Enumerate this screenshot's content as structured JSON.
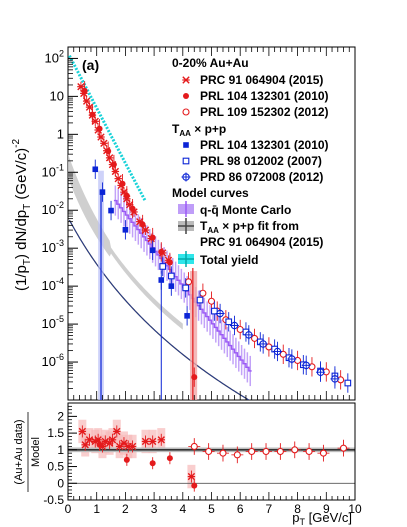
{
  "chart_data": [
    {
      "type": "scatter",
      "panel_label": "(a)",
      "ylabel_main": "(1/p",
      "ylabel_sub": "T",
      "ylabel_rest": ") dN/dp",
      "ylabel_sub2": "T",
      "ylabel_unit": " (GeV/c)",
      "ylabel_exp": "-2",
      "y_scale": "log",
      "xlim": [
        0,
        10
      ],
      "ylim": [
        1e-07,
        200
      ],
      "y_ticks": [
        {
          "v": 100,
          "m": "10",
          "e": "2"
        },
        {
          "v": 10,
          "m": "10",
          "e": ""
        },
        {
          "v": 1,
          "m": "1",
          "e": ""
        },
        {
          "v": 0.1,
          "m": "10",
          "e": "-1"
        },
        {
          "v": 0.01,
          "m": "10",
          "e": "-2"
        },
        {
          "v": 0.001,
          "m": "10",
          "e": "-3"
        },
        {
          "v": 0.0001,
          "m": "10",
          "e": "-4"
        },
        {
          "v": 1e-05,
          "m": "10",
          "e": "-5"
        },
        {
          "v": 1e-06,
          "m": "10",
          "e": "-6"
        }
      ],
      "legend_header": "0-20% Au+Au",
      "legend_taa_prefix": "T",
      "legend_taa_sub": "AA",
      "legend_taa_rest": " × p+p",
      "legend_model_header": "Model curves",
      "series": [
        {
          "name": "PRC 91 064904 (2015)",
          "color": "#e41a1c",
          "marker": "star",
          "points": [
            [
              0.45,
              18
            ],
            [
              0.55,
              12
            ],
            [
              0.65,
              7.5
            ],
            [
              0.75,
              5.2
            ],
            [
              0.85,
              3.2
            ],
            [
              0.95,
              2.2
            ],
            [
              1.05,
              1.3
            ],
            [
              1.15,
              0.85
            ],
            [
              1.25,
              0.58
            ],
            [
              1.35,
              0.37
            ],
            [
              1.45,
              0.24
            ],
            [
              1.55,
              0.16
            ],
            [
              1.65,
              0.105
            ],
            [
              1.75,
              0.068
            ],
            [
              1.85,
              0.045
            ],
            [
              1.95,
              0.03
            ],
            [
              2.05,
              0.02
            ],
            [
              2.15,
              0.014
            ],
            [
              2.3,
              0.009
            ],
            [
              2.5,
              0.005
            ],
            [
              2.7,
              0.003
            ],
            [
              2.9,
              0.0018
            ],
            [
              3.3,
              0.00075
            ],
            [
              3.5,
              0.00048
            ]
          ]
        },
        {
          "name": "PRL 104 132301 (2010)",
          "color": "#e41a1c",
          "marker": "circle-filled",
          "points": [
            [
              0.58,
              14
            ],
            [
              0.85,
              3.3
            ],
            [
              1.1,
              1.4
            ],
            [
              1.4,
              0.36
            ],
            [
              1.6,
              0.16
            ],
            [
              1.9,
              0.05
            ],
            [
              2.05,
              0.024
            ],
            [
              2.25,
              0.011
            ],
            [
              2.6,
              0.0042
            ],
            [
              2.95,
              0.0019
            ],
            [
              3.25,
              0.0008
            ],
            [
              3.55,
              0.00042
            ],
            [
              4.4,
              4e-07
            ]
          ]
        },
        {
          "name": "PRL 109 152302 (2012)",
          "color": "#e41a1c",
          "marker": "circle-open",
          "points": [
            [
              4.2,
              0.00013
            ],
            [
              4.7,
              6.5e-05
            ],
            [
              5.0,
              4e-05
            ],
            [
              5.2,
              2.2e-05
            ],
            [
              5.5,
              1.3e-05
            ],
            [
              6.0,
              7.2e-06
            ],
            [
              6.5,
              4.2e-06
            ],
            [
              7.0,
              2.5e-06
            ],
            [
              7.5,
              1.6e-06
            ],
            [
              8.0,
              1.1e-06
            ],
            [
              8.5,
              7.5e-07
            ],
            [
              9.0,
              5.5e-07
            ],
            [
              9.5,
              3.4e-07
            ]
          ]
        },
        {
          "name": "PRL 104 132301 (2010)",
          "color": "#0b24d6",
          "marker": "square-filled",
          "points": [
            [
              0.95,
              0.12
            ],
            [
              1.2,
              0.03
            ],
            [
              1.5,
              0.0098
            ],
            [
              2.0,
              0.00305
            ],
            [
              2.95,
              0.00088
            ],
            [
              3.25,
              0.000145
            ],
            [
              3.6,
              0.0001
            ],
            [
              4.15,
              1.65e-05
            ]
          ]
        },
        {
          "name": "PRL 98 012002 (2007)",
          "color": "#0b24d6",
          "marker": "square-open",
          "points": [
            [
              3.3,
              0.00033
            ],
            [
              3.6,
              0.000185
            ],
            [
              4.1,
              9e-05
            ],
            [
              4.6,
              4.3e-05
            ],
            [
              5.1,
              2.2e-05
            ],
            [
              5.6,
              1.15e-05
            ],
            [
              6.2,
              6.2e-06
            ],
            [
              6.7,
              3.4e-06
            ],
            [
              7.2,
              2.2e-06
            ],
            [
              7.7,
              1.3e-06
            ],
            [
              8.2,
              8.5e-07
            ],
            [
              8.8,
              5.8e-07
            ],
            [
              9.3,
              4.3e-07
            ],
            [
              9.75,
              2.8e-07
            ]
          ]
        },
        {
          "name": "PRD 86 072008 (2012)",
          "color": "#0b24d6",
          "marker": "crosscircle",
          "points": [
            [
              5.3,
              1.9e-05
            ],
            [
              5.8,
              9.2e-06
            ],
            [
              6.3,
              5.2e-06
            ],
            [
              6.8,
              3e-06
            ],
            [
              7.3,
              1.9e-06
            ],
            [
              7.8,
              1.2e-06
            ],
            [
              8.3,
              8.2e-07
            ],
            [
              8.8,
              5.4e-07
            ],
            [
              9.3,
              3.6e-07
            ]
          ]
        }
      ],
      "model_curves": [
        {
          "name": "q-q̄ Monte Carlo",
          "color": "#9b59f5"
        },
        {
          "name_line1_rest": " × p+p fit from",
          "name_line2": "PRC 91 064904 (2015)",
          "color": "#444444"
        },
        {
          "name": "Total yield",
          "color": "#17d2d8"
        }
      ]
    },
    {
      "type": "scatter",
      "ylabel_num": "(Au+Au data)",
      "ylabel_den": "Model",
      "xlabel_main": "p",
      "xlabel_sub": "T",
      "xlabel_rest": " [GeV/c]",
      "xlim": [
        0,
        10
      ],
      "ylim": [
        -0.5,
        2.4
      ],
      "x_ticks": [
        "0",
        "1",
        "2",
        "3",
        "4",
        "5",
        "6",
        "7",
        "8",
        "9",
        "10"
      ],
      "y_ticks": [
        "-0.5",
        "0",
        "0.5",
        "1",
        "1.5",
        "2"
      ],
      "reference_lines": [
        1,
        0
      ],
      "series": [
        {
          "name": "ratio-stars",
          "color": "#e41a1c",
          "marker": "star",
          "points": [
            [
              0.5,
              1.55
            ],
            [
              0.6,
              1.15
            ],
            [
              0.75,
              1.3
            ],
            [
              0.95,
              1.25
            ],
            [
              1.05,
              1.3
            ],
            [
              1.2,
              1.1
            ],
            [
              1.3,
              1.25
            ],
            [
              1.45,
              1.2
            ],
            [
              1.55,
              1.3
            ],
            [
              1.7,
              1.55
            ],
            [
              1.8,
              1.1
            ],
            [
              1.95,
              1.2
            ],
            [
              2.1,
              1.1
            ],
            [
              2.25,
              1.1
            ],
            [
              2.7,
              1.25
            ],
            [
              2.95,
              1.25
            ],
            [
              3.25,
              1.3
            ],
            [
              4.3,
              0.2
            ]
          ]
        },
        {
          "name": "ratio-filled",
          "color": "#e41a1c",
          "marker": "circle-filled",
          "points": [
            [
              1.1,
              1.15
            ],
            [
              2.05,
              0.7
            ],
            [
              2.95,
              0.6
            ],
            [
              3.55,
              0.75
            ],
            [
              4.4,
              -0.07
            ]
          ]
        },
        {
          "name": "ratio-open",
          "color": "#e41a1c",
          "marker": "circle-open",
          "points": [
            [
              4.4,
              1.1
            ],
            [
              4.9,
              0.95
            ],
            [
              5.4,
              0.9
            ],
            [
              5.9,
              0.85
            ],
            [
              6.4,
              0.95
            ],
            [
              6.9,
              0.95
            ],
            [
              7.4,
              0.95
            ],
            [
              7.9,
              1.0
            ],
            [
              8.4,
              0.95
            ],
            [
              8.9,
              0.9
            ],
            [
              9.6,
              1.05
            ]
          ]
        }
      ]
    }
  ]
}
